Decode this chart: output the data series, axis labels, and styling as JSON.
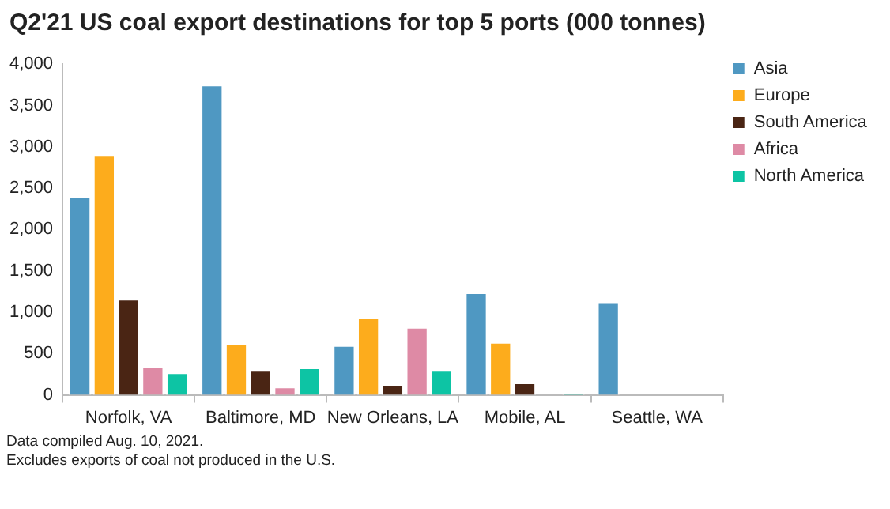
{
  "chart_data": {
    "type": "bar",
    "title": "Q2'21 US coal export destinations for top 5 ports (000 tonnes)",
    "categories": [
      "Norfolk, VA",
      "Baltimore, MD",
      "New Orleans, LA",
      "Mobile, AL",
      "Seattle, WA"
    ],
    "series": [
      {
        "name": "Asia",
        "color": "#4f98c2",
        "values": [
          2400,
          3750,
          600,
          1240,
          1130
        ]
      },
      {
        "name": "Europe",
        "color": "#fdac1c",
        "values": [
          2900,
          620,
          940,
          640,
          0
        ]
      },
      {
        "name": "South America",
        "color": "#4a2514",
        "values": [
          1160,
          300,
          120,
          150,
          0
        ]
      },
      {
        "name": "Africa",
        "color": "#de8aa5",
        "values": [
          350,
          100,
          820,
          0,
          0
        ]
      },
      {
        "name": "North America",
        "color": "#0dc4a4",
        "values": [
          270,
          330,
          300,
          20,
          0
        ]
      }
    ],
    "ylim": [
      0,
      4000
    ],
    "yticks": [
      0,
      500,
      {
        "value": 1000,
        "label": "1,000"
      },
      {
        "value": 1500,
        "label": "1,500"
      },
      {
        "value": 2000,
        "label": "2,000"
      },
      {
        "value": 2500,
        "label": "2,500"
      },
      {
        "value": 3000,
        "label": "3,000"
      },
      {
        "value": 3500,
        "label": "3,500"
      },
      {
        "value": 4000,
        "label": "4,000"
      }
    ],
    "grid": false,
    "legend": "top right",
    "annotations": [
      "Data compiled Aug. 10, 2021.",
      "Excludes exports of coal not produced in the U.S."
    ]
  }
}
